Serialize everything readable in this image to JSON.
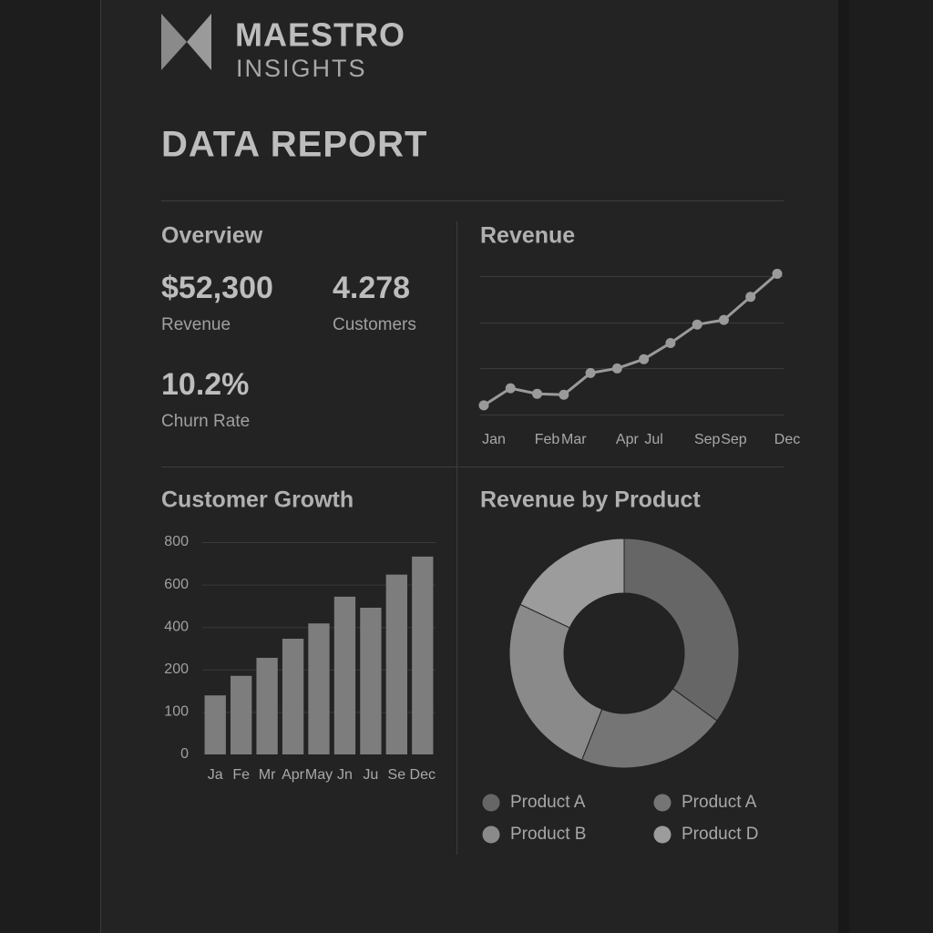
{
  "header": {
    "brand": "MAESTRO",
    "tagline": "INSIGHTS",
    "title": "DATA REPORT"
  },
  "overview": {
    "title": "Overview",
    "metrics": [
      {
        "value": "$52,300",
        "label": "Revenue"
      },
      {
        "value": "4.278",
        "label": "Customers"
      },
      {
        "value": "10.2%",
        "label": "Churn Rate"
      }
    ]
  },
  "chart_data": [
    {
      "type": "line",
      "title": "Revenue",
      "categories": [
        "Jan",
        null,
        "Feb",
        "Mar",
        null,
        "Apr",
        "Jul",
        null,
        "Sep",
        "Sep",
        null,
        "Dec"
      ],
      "values": [
        0.2,
        0.57,
        0.45,
        0.43,
        0.9,
        1.0,
        1.2,
        1.55,
        1.95,
        2.05,
        2.55,
        3.05
      ],
      "ylim": [
        0,
        3
      ],
      "color": "#9a9a9a"
    },
    {
      "type": "bar",
      "title": "Customer Growth",
      "categories": [
        "Ja",
        "Fe",
        "Mr",
        "Apr",
        "May",
        "Jn",
        "Ju",
        "Se",
        "Dec"
      ],
      "values": [
        139,
        185,
        255,
        345,
        417,
        543,
        491,
        647,
        732
      ],
      "ylim": [
        0,
        800
      ],
      "yticks": [
        0,
        100,
        200,
        400,
        600,
        800
      ],
      "grid": true,
      "color": "#7d7d7d"
    },
    {
      "type": "pie",
      "title": "Revenue by Product",
      "categories": [
        "Product A",
        "Product A",
        "Product B",
        "Product D"
      ],
      "values": [
        35,
        21,
        26,
        18
      ],
      "colors": [
        "#666666",
        "#757575",
        "#8a8a8a",
        "#9c9c9c"
      ],
      "donut": true
    }
  ]
}
